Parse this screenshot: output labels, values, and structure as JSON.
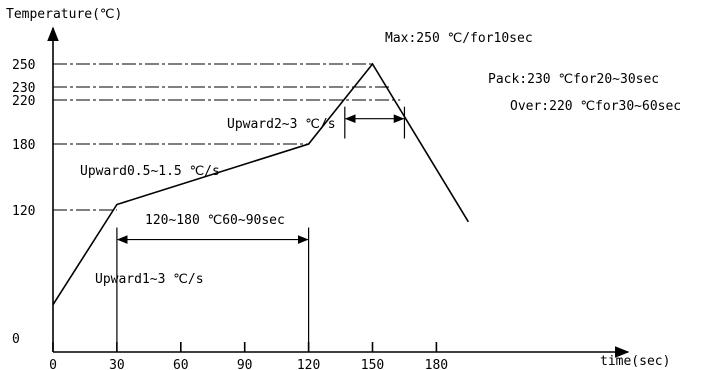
{
  "chart_data": {
    "type": "line",
    "title": "",
    "ylabel": "Temperature(℃)",
    "xlabel": "time(sec)",
    "x_ticks": [
      0,
      30,
      60,
      90,
      120,
      150,
      180
    ],
    "y_ticks": [
      0,
      120,
      180,
      220,
      230,
      250
    ],
    "xlim": [
      0,
      195
    ],
    "ylim": [
      0,
      265
    ],
    "series": [
      {
        "x": [
          0,
          30,
          120,
          150,
          195
        ],
        "y": [
          40,
          125,
          180,
          250,
          110
        ]
      }
    ],
    "reference_lines": [
      {
        "y": 250,
        "x_end": 150
      },
      {
        "y": 230,
        "x_end": 158
      },
      {
        "y": 220,
        "x_end": 163
      },
      {
        "y": 180,
        "x_end": 120
      },
      {
        "y": 120,
        "x_end": 30
      }
    ],
    "ranges": [
      {
        "x_start": 30,
        "x_end": 120,
        "y": 95,
        "vline_from": 0,
        "label": "120~180 ℃60~90sec"
      },
      {
        "x_start": 137,
        "x_end": 165,
        "y": 203,
        "vline_from": 185,
        "label": ""
      }
    ],
    "annotations": [
      "Max:250 ℃/for10sec",
      "Pack:230 ℃for20~30sec",
      "Over:220 ℃for30~60sec",
      "Upward2~3 ℃/s",
      "Upward0.5~1.5 ℃/s",
      "Upward1~3 ℃/s"
    ]
  }
}
